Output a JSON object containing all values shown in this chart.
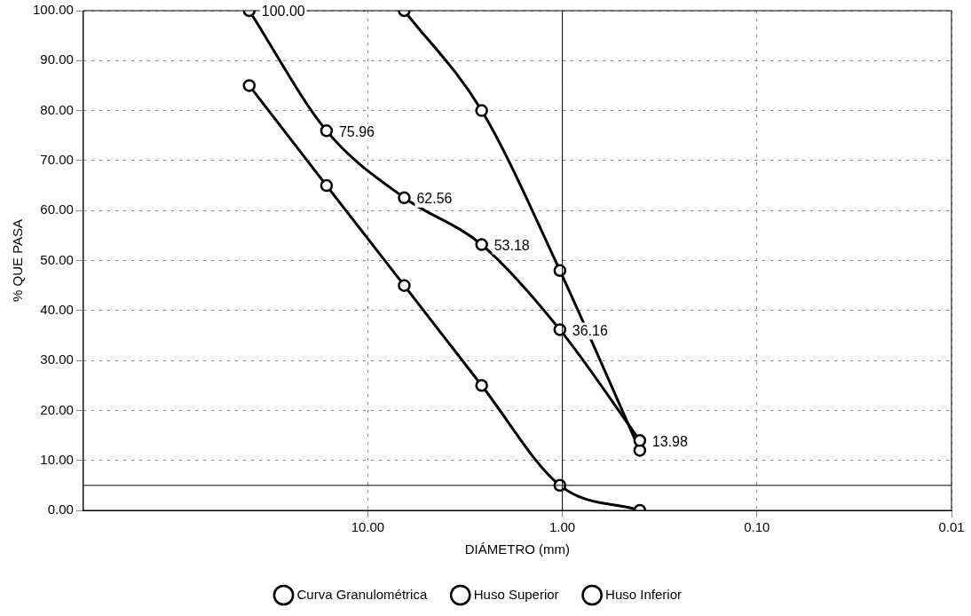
{
  "chart_data": {
    "type": "line",
    "xlabel": "DIÁMETRO (mm)",
    "ylabel": "% QUE PASA",
    "log": "x",
    "xlim": [
      290,
      0.01
    ],
    "xticks": [
      {
        "value": 10,
        "label": "10.00"
      },
      {
        "value": 1,
        "label": "1.00"
      },
      {
        "value": 0.1,
        "label": "0.10"
      },
      {
        "value": 0.01,
        "label": "0.01"
      }
    ],
    "ylim": [
      0,
      100
    ],
    "yticks": [
      {
        "value": 0,
        "label": "0.00"
      },
      {
        "value": 10,
        "label": "10.00"
      },
      {
        "value": 20,
        "label": "20.00"
      },
      {
        "value": 30,
        "label": "30.00"
      },
      {
        "value": 40,
        "label": "40.00"
      },
      {
        "value": 50,
        "label": "50.00"
      },
      {
        "value": 60,
        "label": "60.00"
      },
      {
        "value": 70,
        "label": "70.00"
      },
      {
        "value": 80,
        "label": "80.00"
      },
      {
        "value": 90,
        "label": "90.00"
      },
      {
        "value": 100,
        "label": "100.00"
      }
    ],
    "grid": true,
    "legend": "bottom",
    "marker": "circle",
    "line_style": "solid",
    "ref_lines": [
      {
        "axis": "y",
        "value": 5,
        "color": "#000000"
      },
      {
        "axis": "x",
        "value": 1,
        "color": "#000000"
      }
    ],
    "series": [
      {
        "name": "Curva Granulométrica",
        "color": "#000000",
        "x": [
          40.7,
          16.3,
          6.5,
          2.6,
          1.03,
          0.4
        ],
        "values": [
          100,
          75.96,
          62.56,
          53.18,
          36.16,
          13.98
        ],
        "value_labels": [
          "100.00",
          "75.96",
          "62.56",
          "53.18",
          "36.16",
          "13.98"
        ]
      },
      {
        "name": "Huso Superior",
        "color": "#000000",
        "x": [
          6.5,
          2.6,
          1.03,
          0.4
        ],
        "values": [
          100,
          80,
          48,
          12
        ]
      },
      {
        "name": "Huso Inferior",
        "color": "#000000",
        "x": [
          40.7,
          16.3,
          6.5,
          2.6,
          1.03,
          0.4
        ],
        "values": [
          85,
          65,
          45,
          25,
          5,
          0
        ]
      }
    ]
  }
}
